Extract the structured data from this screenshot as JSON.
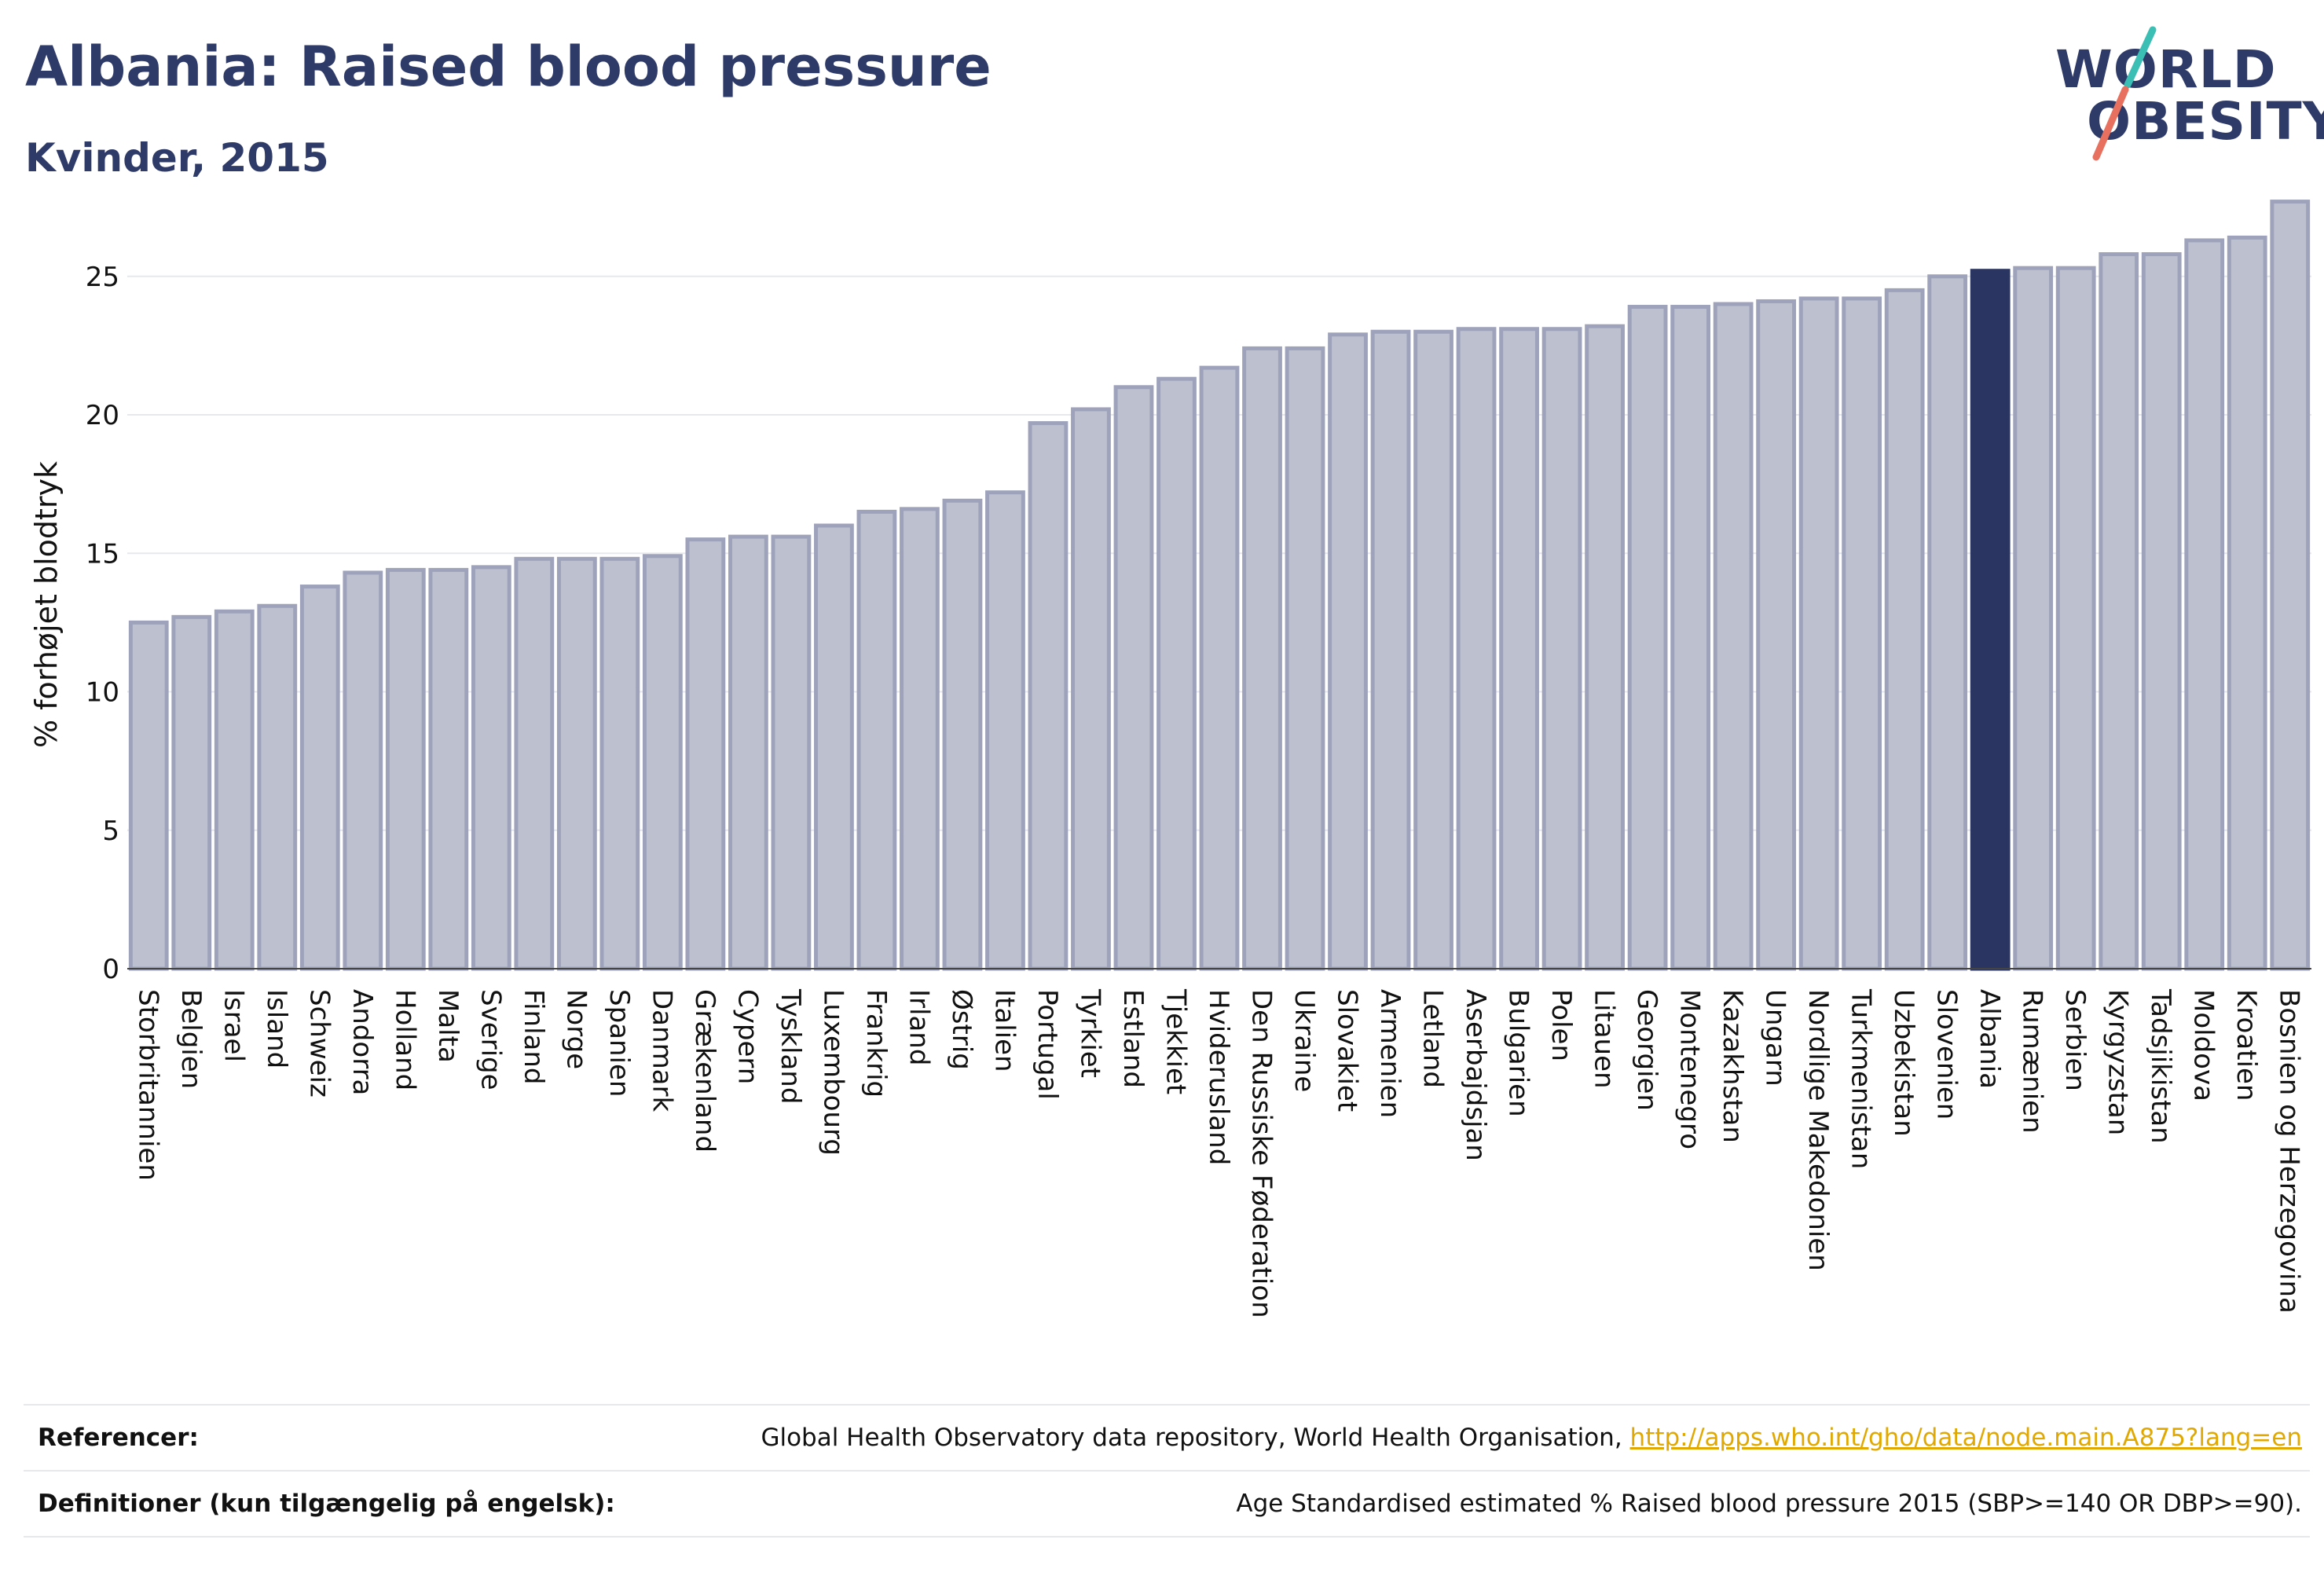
{
  "header": {
    "title": "Albania: Raised blood pressure",
    "subtitle": "Kvinder, 2015"
  },
  "logo": {
    "line1": "WORLD",
    "line2": "OBESITY",
    "colors": {
      "text": "#2e3a68",
      "teal": "#3bbfb5",
      "coral": "#e8705f"
    }
  },
  "colors": {
    "bar": "#bcc0cf",
    "bar_stroke": "#9ea3bb",
    "highlight": "#2a3561",
    "grid": "#e6e8ee",
    "text": "#111111"
  },
  "chart_data": {
    "type": "bar",
    "ylabel": "% forhøjet blodtryk",
    "ylim": [
      0,
      28
    ],
    "yticks": [
      0,
      5,
      10,
      15,
      20,
      25
    ],
    "grid": true,
    "highlight": "Albania",
    "categories": [
      "Storbritannien",
      "Belgien",
      "Israel",
      "Island",
      "Schweiz",
      "Andorra",
      "Holland",
      "Malta",
      "Sverige",
      "Finland",
      "Norge",
      "Spanien",
      "Danmark",
      "Grækenland",
      "Cypern",
      "Tyskland",
      "Luxembourg",
      "Frankrig",
      "Irland",
      "Østrig",
      "Italien",
      "Portugal",
      "Tyrkiet",
      "Estland",
      "Tjekkiet",
      "Hviderusland",
      "Den Russiske Føderation",
      "Ukraine",
      "Slovakiet",
      "Armenien",
      "Letland",
      "Aserbajdsjan",
      "Bulgarien",
      "Polen",
      "Litauen",
      "Georgien",
      "Montenegro",
      "Kazakhstan",
      "Ungarn",
      "Nordlige Makedonien",
      "Turkmenistan",
      "Uzbekistan",
      "Slovenien",
      "Albania",
      "Rumænien",
      "Serbien",
      "Kyrgyzstan",
      "Tadsjikistan",
      "Moldova",
      "Kroatien",
      "Bosnien og Herzegovina"
    ],
    "values": [
      12.5,
      12.7,
      12.9,
      13.1,
      13.8,
      14.3,
      14.4,
      14.4,
      14.5,
      14.8,
      14.8,
      14.8,
      14.9,
      15.5,
      15.6,
      15.6,
      16.0,
      16.5,
      16.6,
      16.9,
      17.2,
      19.7,
      20.2,
      21.0,
      21.3,
      21.7,
      22.4,
      22.4,
      22.9,
      23.0,
      23.0,
      23.1,
      23.1,
      23.1,
      23.2,
      23.9,
      23.9,
      24.0,
      24.1,
      24.2,
      24.2,
      24.5,
      25.0,
      25.2,
      25.3,
      25.3,
      25.8,
      25.8,
      26.3,
      26.4,
      27.7
    ]
  },
  "footer": {
    "references_label": "Referencer:",
    "references_text": "Global Health Observatory data repository, World Health Organisation, ",
    "references_link": "http://apps.who.int/gho/data/node.main.A875?lang=en",
    "definitions_label": "Definitioner (kun tilgængelig på engelsk):",
    "definitions_text": "Age Standardised estimated % Raised blood pressure 2015 (SBP>=140 OR DBP>=90)."
  }
}
